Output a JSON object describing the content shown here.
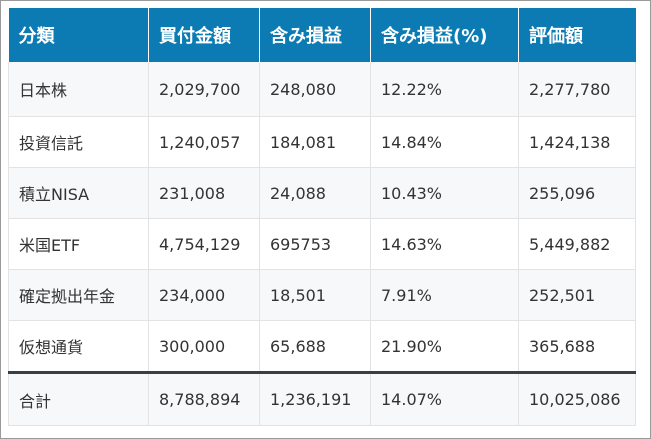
{
  "header": [
    "分類",
    "買付金額",
    "含み損益",
    "含み損益(%)",
    "評価額"
  ],
  "rows": [
    [
      "日本株",
      "2,029,700",
      "248,080",
      "12.22%",
      "2,277,780"
    ],
    [
      "投資信託",
      "1,240,057",
      "184,081",
      "14.84%",
      "1,424,138"
    ],
    [
      "積立NISA",
      "231,008",
      "24,088",
      "10.43%",
      "255,096"
    ],
    [
      "米国ETF",
      "4,754,129",
      "695753",
      "14.63%",
      "5,449,882"
    ],
    [
      "確定拠出年金",
      "234,000",
      "18,501",
      "7.91%",
      "252,501"
    ],
    [
      "仮想通貨",
      "300,000",
      "65,688",
      "21.90%",
      "365,688"
    ]
  ],
  "total": [
    "合計",
    "8,788,894",
    "1,236,191",
    "14.07%",
    "10,025,086"
  ],
  "colors": {
    "header_bg": "#0c7bb3",
    "header_text": "#ffffff",
    "stripe_bg": "#f7f8fa",
    "total_rule": "#3a3f44"
  }
}
